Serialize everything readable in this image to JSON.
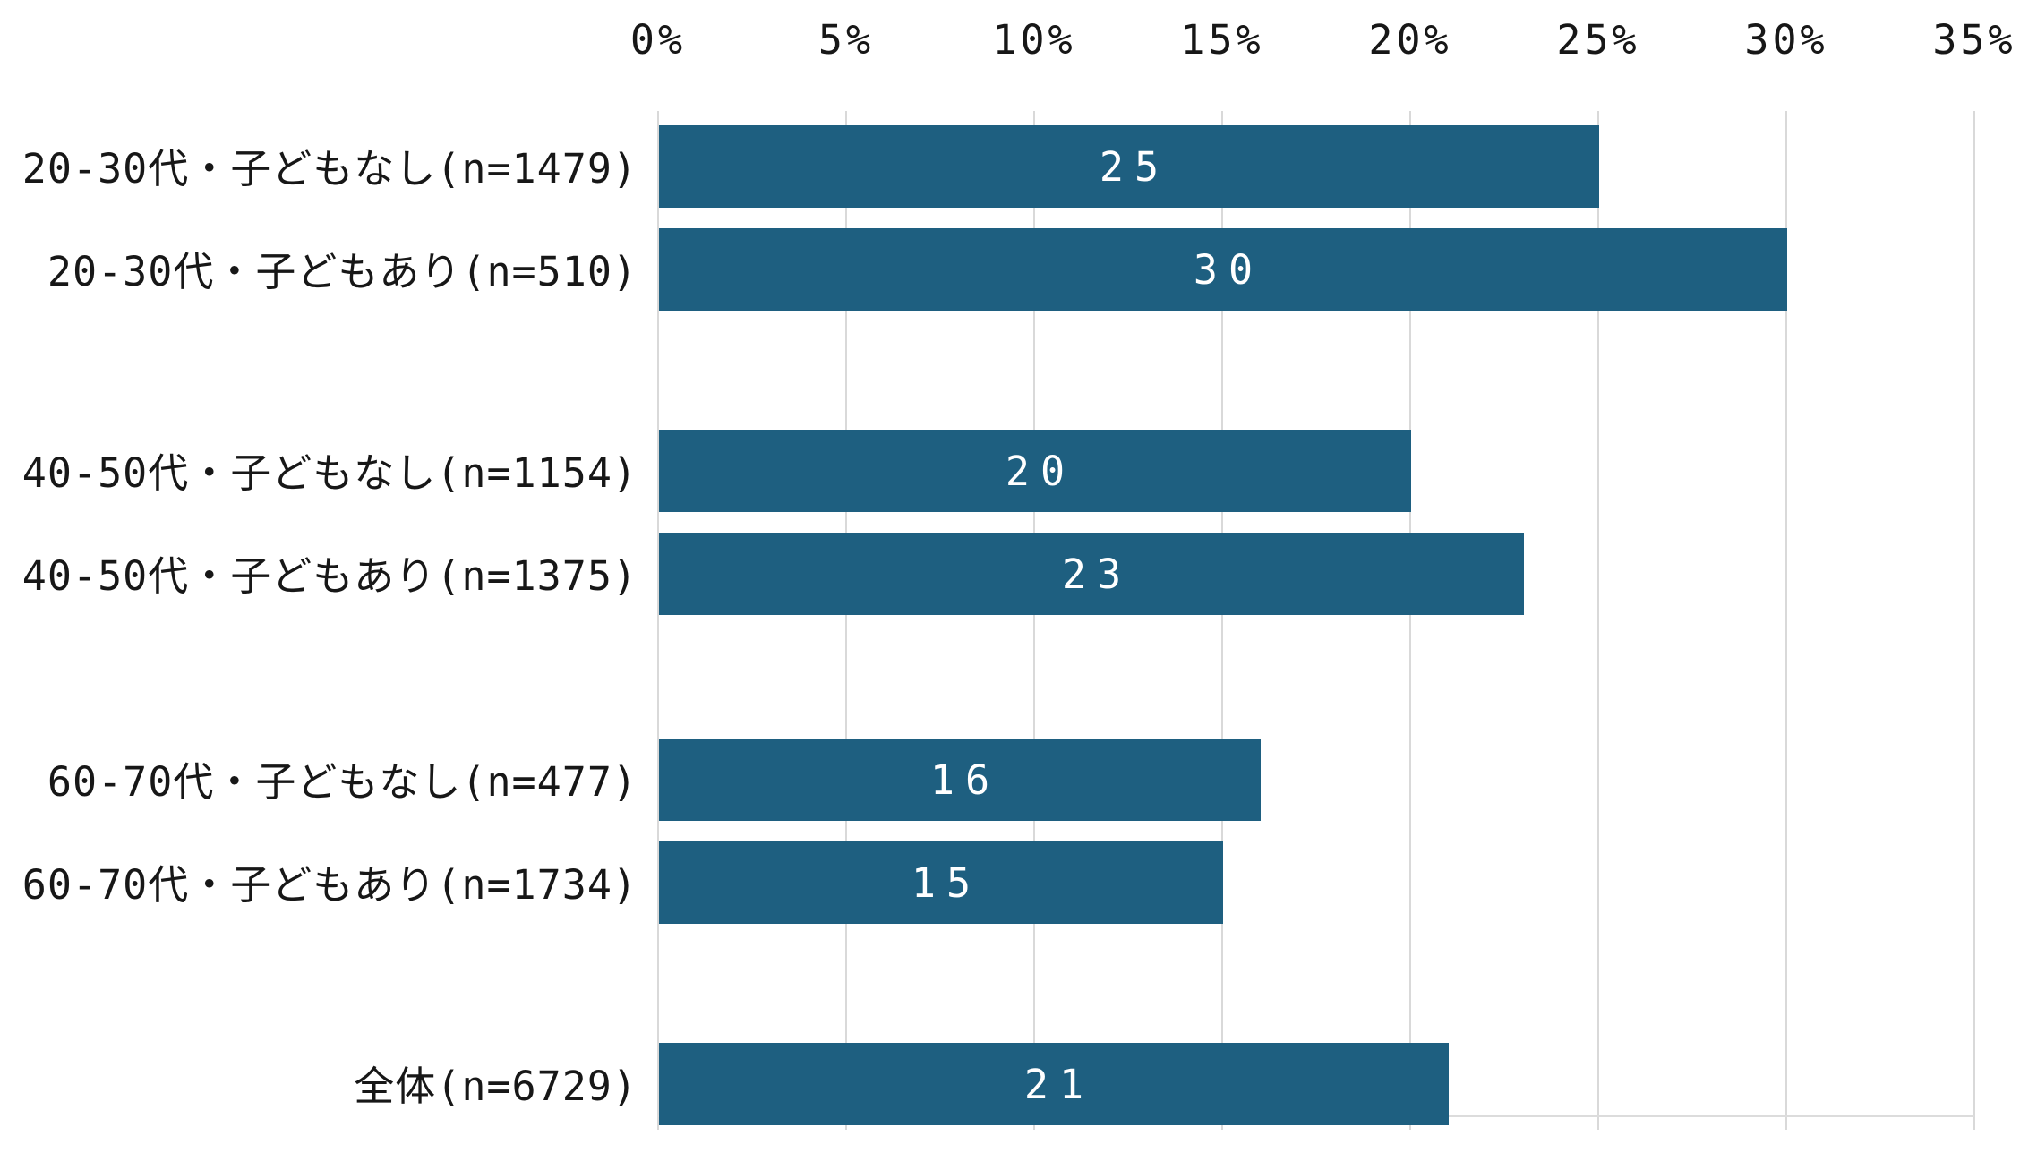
{
  "chart_data": {
    "type": "bar",
    "orientation": "horizontal",
    "title": "",
    "xlabel": "",
    "ylabel": "",
    "axis_position": "top",
    "xlim": [
      0,
      35
    ],
    "x_ticks": [
      "0%",
      "5%",
      "10%",
      "15%",
      "20%",
      "25%",
      "30%",
      "35%"
    ],
    "x_tick_values": [
      0,
      5,
      10,
      15,
      20,
      25,
      30,
      35
    ],
    "grid": true,
    "legend": false,
    "categories": [
      "20-30代・子どもなし(n=1479)",
      "20-30代・子どもあり(n=510)",
      "40-50代・子どもなし(n=1154)",
      "40-50代・子どもあり(n=1375)",
      "60-70代・子どもなし(n=477)",
      "60-70代・子どもあり(n=1734)",
      "全体(n=6729)"
    ],
    "values": [
      25,
      30,
      20,
      23,
      16,
      15,
      21
    ],
    "value_labels": [
      "25",
      "30",
      "20",
      "23",
      "16",
      "15",
      "21"
    ],
    "group_gaps_after": [
      1,
      3,
      5
    ],
    "colors": {
      "bar": "#1e5f80",
      "bar_value_text": "#ffffff",
      "gridline": "#d9d9d9",
      "axis_text": "#171717"
    }
  }
}
